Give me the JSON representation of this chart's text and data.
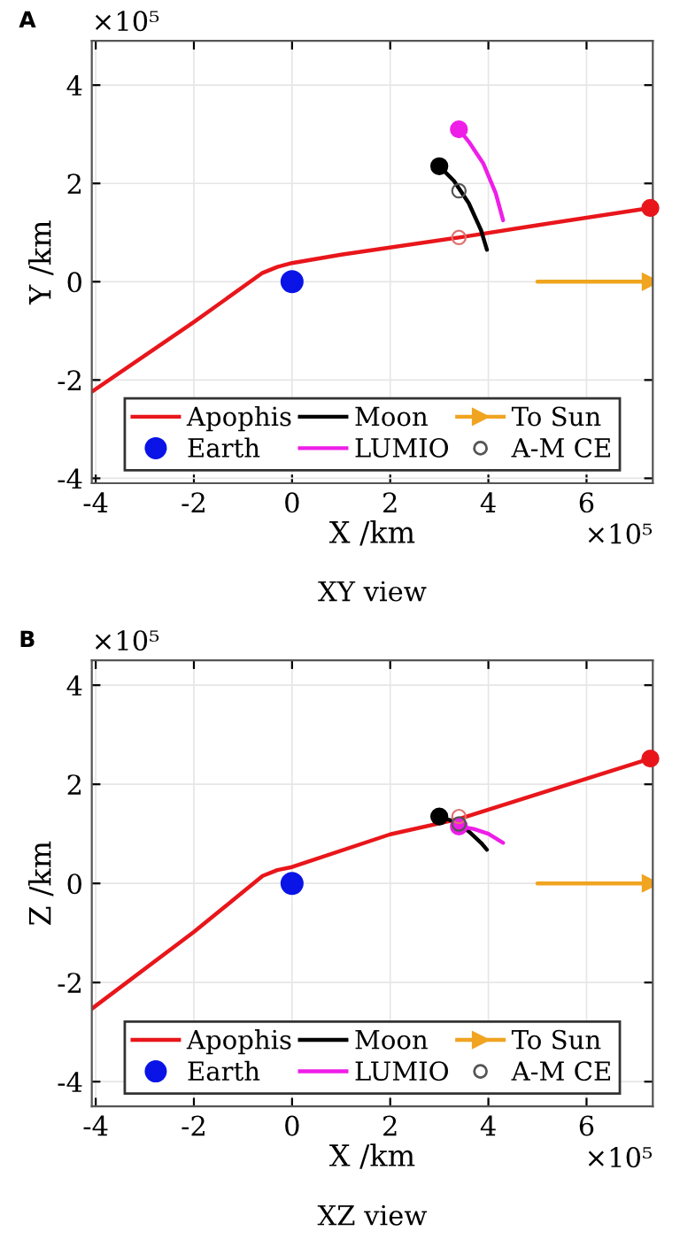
{
  "chart_data": [
    {
      "type": "line",
      "xlabel": "X /km",
      "ylabel": "Y /km",
      "annotations": [
        "A",
        "×10⁵",
        "×10⁵",
        "XY view"
      ],
      "xlim": [
        -4.08,
        7.35
      ],
      "ylim": [
        -4.1,
        4.9
      ],
      "xticks": [
        -4,
        -2,
        0,
        2,
        4,
        6
      ],
      "yticks": [
        -4,
        -2,
        0,
        2,
        4
      ],
      "grid": true,
      "legend": "bottom",
      "series": [
        {
          "name": "Apophis",
          "color": "#e8161b",
          "x": [
            -4.08,
            -2,
            -0.6,
            -0.3,
            0,
            1,
            3.4,
            5,
            7.3
          ],
          "values": [
            -2.24,
            -0.82,
            0.18,
            0.3,
            0.38,
            0.55,
            0.9,
            1.15,
            1.5
          ]
        },
        {
          "name": "Earth",
          "type": "scatter",
          "color": "#0a14e6",
          "x": [
            0
          ],
          "values": [
            0
          ]
        },
        {
          "name": "Moon",
          "color": "#000000",
          "x": [
            3.0,
            3.3,
            3.6,
            3.85,
            3.97
          ],
          "values": [
            2.35,
            2.05,
            1.6,
            1.05,
            0.65
          ]
        },
        {
          "name": "LUMIO",
          "color": "#ee1ee8",
          "x": [
            3.4,
            3.6,
            3.9,
            4.15,
            4.3
          ],
          "values": [
            3.1,
            2.85,
            2.4,
            1.8,
            1.25
          ]
        },
        {
          "name": "To Sun",
          "marker": "triangle",
          "color": "#f0a420",
          "x": [
            5,
            7.3
          ],
          "values": [
            0,
            0
          ]
        },
        {
          "name": "A-M CE",
          "type": "scatter",
          "marker": "circle",
          "colors": [
            "#e07070",
            "#555555"
          ],
          "x": [
            3.4,
            3.4
          ],
          "values": [
            0.9,
            1.85
          ]
        },
        {
          "type": "scatter",
          "color": "#e8161b",
          "x": [
            7.3
          ],
          "values": [
            1.5
          ]
        },
        {
          "type": "scatter",
          "color": "#000000",
          "x": [
            3.0
          ],
          "values": [
            2.35
          ]
        },
        {
          "type": "scatter",
          "color": "#ee1ee8",
          "x": [
            3.4
          ],
          "values": [
            3.1
          ]
        }
      ]
    },
    {
      "type": "line",
      "xlabel": "X /km",
      "ylabel": "Z /km",
      "annotations": [
        "B",
        "×10⁵",
        "×10⁵",
        "XZ view"
      ],
      "xlim": [
        -4.08,
        7.35
      ],
      "ylim": [
        -4.5,
        4.5
      ],
      "xticks": [
        -4,
        -2,
        0,
        2,
        4,
        6
      ],
      "yticks": [
        -4,
        -2,
        0,
        2,
        4
      ],
      "grid": true,
      "legend": "bottom",
      "series": [
        {
          "name": "Apophis",
          "color": "#e8161b",
          "x": [
            -4.08,
            -2,
            -0.6,
            -0.3,
            0,
            2,
            3.4,
            5,
            7.3
          ],
          "values": [
            -2.53,
            -0.98,
            0.15,
            0.27,
            0.33,
            0.99,
            1.3,
            1.8,
            2.52
          ]
        },
        {
          "name": "Earth",
          "type": "scatter",
          "color": "#0a14e6",
          "x": [
            0
          ],
          "values": [
            0
          ]
        },
        {
          "name": "Moon",
          "color": "#000000",
          "x": [
            3.0,
            3.3,
            3.6,
            3.85,
            3.97
          ],
          "values": [
            1.35,
            1.25,
            1.05,
            0.82,
            0.68
          ]
        },
        {
          "name": "LUMIO",
          "color": "#ee1ee8",
          "x": [
            3.4,
            3.7,
            4.0,
            4.3
          ],
          "values": [
            1.15,
            1.1,
            1.0,
            0.82
          ]
        },
        {
          "name": "To Sun",
          "marker": "triangle",
          "color": "#f0a420",
          "x": [
            5,
            7.3
          ],
          "values": [
            0,
            0
          ]
        },
        {
          "name": "A-M CE",
          "type": "scatter",
          "marker": "circle",
          "colors": [
            "#e07070",
            "#555555"
          ],
          "x": [
            3.4,
            3.4
          ],
          "values": [
            1.35,
            1.2
          ]
        },
        {
          "type": "scatter",
          "color": "#e8161b",
          "x": [
            7.3
          ],
          "values": [
            2.52
          ]
        },
        {
          "type": "scatter",
          "color": "#000000",
          "x": [
            3.0
          ],
          "values": [
            1.35
          ]
        },
        {
          "type": "scatter",
          "color": "#ee1ee8",
          "x": [
            3.4
          ],
          "values": [
            1.15
          ]
        }
      ]
    }
  ]
}
